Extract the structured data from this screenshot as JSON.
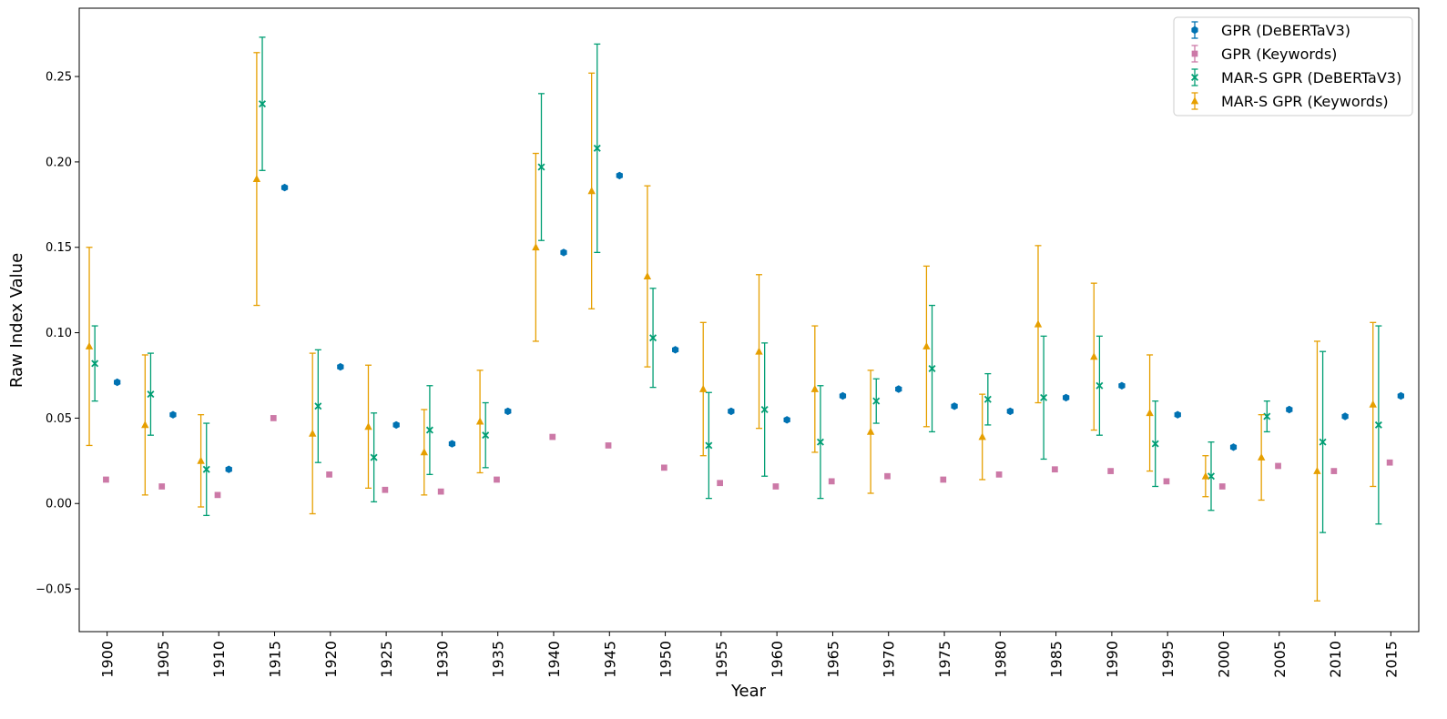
{
  "chart_data": {
    "type": "scatter",
    "xlabel": "Year",
    "ylabel": "Raw Index Value",
    "ylim": [
      -0.075,
      0.29
    ],
    "yticks": [
      -0.05,
      0.0,
      0.05,
      0.1,
      0.15,
      0.2,
      0.25
    ],
    "ytick_labels": [
      "−0.05",
      "0.00",
      "0.05",
      "0.10",
      "0.15",
      "0.20",
      "0.25"
    ],
    "categories": [
      "1900",
      "1905",
      "1910",
      "1915",
      "1920",
      "1925",
      "1930",
      "1935",
      "1940",
      "1945",
      "1950",
      "1955",
      "1960",
      "1965",
      "1970",
      "1975",
      "1980",
      "1985",
      "1990",
      "1995",
      "2000",
      "2005",
      "2010",
      "2015"
    ],
    "legend_position": "top-right",
    "series": [
      {
        "name": "GPR (DeBERTaV3)",
        "marker": "hexagon",
        "color": "#0072b2",
        "offset": 0.9,
        "values": [
          0.071,
          0.052,
          0.02,
          0.185,
          0.08,
          0.046,
          0.035,
          0.054,
          0.147,
          0.192,
          0.09,
          0.054,
          0.049,
          0.063,
          0.067,
          0.057,
          0.054,
          0.062,
          0.069,
          0.052,
          0.033,
          0.055,
          0.051,
          0.063
        ],
        "errors": [
          0.001,
          0.001,
          0.001,
          0.001,
          0.001,
          0.001,
          0.001,
          0.001,
          0.001,
          0.001,
          0.001,
          0.001,
          0.001,
          0.001,
          0.001,
          0.001,
          0.001,
          0.001,
          0.001,
          0.001,
          0.001,
          0.001,
          0.001,
          0.001
        ]
      },
      {
        "name": "GPR (Keywords)",
        "marker": "square",
        "color": "#cc79a7",
        "offset": -0.1,
        "values": [
          0.014,
          0.01,
          0.005,
          0.05,
          0.017,
          0.008,
          0.007,
          0.014,
          0.039,
          0.034,
          0.021,
          0.012,
          0.01,
          0.013,
          0.016,
          0.014,
          0.017,
          0.02,
          0.019,
          0.013,
          0.01,
          0.022,
          0.019,
          0.024
        ],
        "errors": [
          0,
          0,
          0,
          0,
          0,
          0,
          0,
          0,
          0,
          0,
          0,
          0,
          0,
          0,
          0,
          0,
          0,
          0,
          0,
          0,
          0,
          0,
          0,
          0
        ]
      },
      {
        "name": "MAR-S GPR (DeBERTaV3)",
        "marker": "x",
        "color": "#009e73",
        "offset": -1.1,
        "values": [
          0.082,
          0.064,
          0.02,
          0.234,
          0.057,
          0.027,
          0.043,
          0.04,
          0.197,
          0.208,
          0.097,
          0.034,
          0.055,
          0.036,
          0.06,
          0.079,
          0.061,
          0.062,
          0.069,
          0.035,
          0.016,
          0.051,
          0.036,
          0.046
        ],
        "errors": [
          0.022,
          0.024,
          0.027,
          0.039,
          0.033,
          0.026,
          0.026,
          0.019,
          0.043,
          0.061,
          0.029,
          0.031,
          0.039,
          0.033,
          0.013,
          0.037,
          0.015,
          0.036,
          0.029,
          0.025,
          0.02,
          0.009,
          0.053,
          0.058
        ]
      },
      {
        "name": "MAR-S GPR (Keywords)",
        "marker": "triangle",
        "color": "#e69f00",
        "offset": -1.6,
        "values": [
          0.092,
          0.046,
          0.025,
          0.19,
          0.041,
          0.045,
          0.03,
          0.048,
          0.15,
          0.183,
          0.133,
          0.067,
          0.089,
          0.067,
          0.042,
          0.092,
          0.039,
          0.105,
          0.086,
          0.053,
          0.016,
          0.027,
          0.019,
          0.058
        ],
        "errors": [
          0.058,
          0.041,
          0.027,
          0.074,
          0.047,
          0.036,
          0.025,
          0.03,
          0.055,
          0.069,
          0.053,
          0.039,
          0.045,
          0.037,
          0.036,
          0.047,
          0.025,
          0.046,
          0.043,
          0.034,
          0.012,
          0.025,
          0.076,
          0.048
        ]
      }
    ]
  }
}
